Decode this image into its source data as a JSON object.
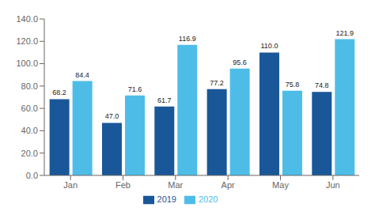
{
  "chart_data": {
    "type": "bar",
    "categories": [
      "Jan",
      "Feb",
      "Mar",
      "Apr",
      "May",
      "Jun"
    ],
    "series": [
      {
        "name": "2019",
        "color": "#1a5799",
        "values": [
          68.2,
          47.0,
          61.7,
          77.2,
          110.0,
          74.8
        ],
        "value_labels": [
          "68.2",
          "47.0",
          "61.7",
          "77.2",
          "110.0",
          "74.8"
        ]
      },
      {
        "name": "2020",
        "color": "#4dbde8",
        "values": [
          84.4,
          71.6,
          116.9,
          95.6,
          75.8,
          121.9
        ],
        "value_labels": [
          "84.4",
          "71.6",
          "116.9",
          "95.6",
          "75.8",
          "121.9"
        ]
      }
    ],
    "ylim": [
      0,
      140
    ],
    "yticks": [
      {
        "value": 0,
        "label": "0.0"
      },
      {
        "value": 20,
        "label": "20.0"
      },
      {
        "value": 40,
        "label": "40.0"
      },
      {
        "value": 60,
        "label": "60.0"
      },
      {
        "value": 80,
        "label": "80.0"
      },
      {
        "value": 100,
        "label": "100.0"
      },
      {
        "value": 120,
        "label": "120.0"
      },
      {
        "value": 140,
        "label": "140.0"
      }
    ],
    "grid": false,
    "legend": "bottom",
    "data_labels": true
  }
}
